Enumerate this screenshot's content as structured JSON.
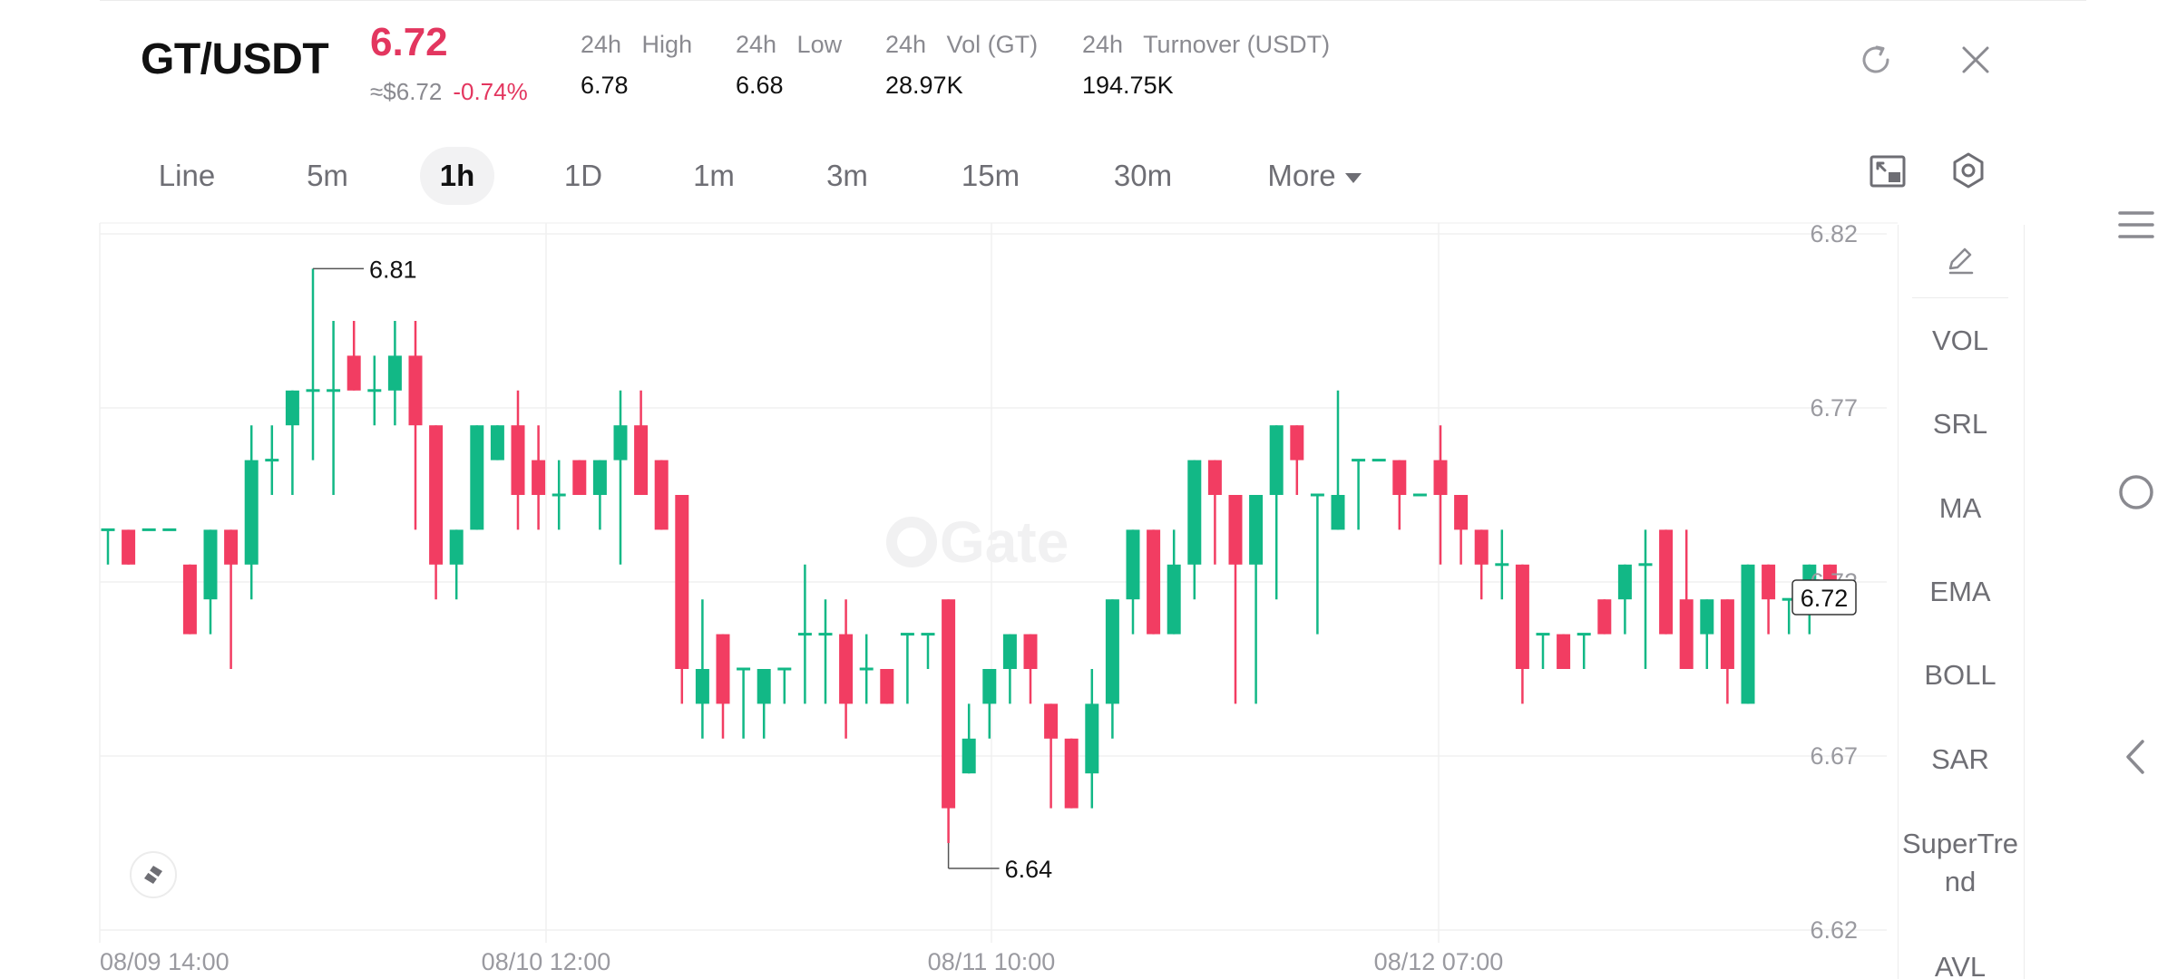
{
  "header": {
    "pair": "GT/USDT",
    "price": "6.72",
    "approx": "≈$6.72",
    "change": "-0.74%",
    "stats": [
      {
        "label": "24h   High",
        "value": "6.78"
      },
      {
        "label": "24h   Low",
        "value": "6.68"
      },
      {
        "label": "24h   Vol (GT)",
        "value": "28.97K"
      },
      {
        "label": "24h   Turnover (USDT)",
        "value": "194.75K"
      }
    ],
    "icons": [
      "refresh-icon",
      "close-icon"
    ]
  },
  "tabs": [
    {
      "label": "Line",
      "active": false
    },
    {
      "label": "5m",
      "active": false
    },
    {
      "label": "1h",
      "active": true
    },
    {
      "label": "1D",
      "active": false
    },
    {
      "label": "1m",
      "active": false
    },
    {
      "label": "3m",
      "active": false
    },
    {
      "label": "15m",
      "active": false
    },
    {
      "label": "30m",
      "active": false
    },
    {
      "label": "More",
      "active": false
    }
  ],
  "toolbar_icons": [
    "fullscreen-icon",
    "settings-icon"
  ],
  "indicators": [
    "VOL",
    "SRL",
    "MA",
    "EMA",
    "BOLL",
    "SAR",
    "SuperTre\nnd",
    "AVL"
  ],
  "watermark": "Gate",
  "chart_data": {
    "type": "candlestick",
    "y_ticks": [
      "6.82",
      "6.77",
      "6.72",
      "6.67",
      "6.62"
    ],
    "ylim": [
      6.62,
      6.82
    ],
    "x_ticks": [
      "08/09 14:00",
      "08/10 12:00",
      "08/11 10:00",
      "08/12 07:00"
    ],
    "current_price": "6.72",
    "high_label": "6.81",
    "low_label": "6.64",
    "colors": {
      "up": "#12b886",
      "down": "#f23d62"
    },
    "candles": [
      [
        6.735,
        6.735,
        6.735,
        6.725
      ],
      [
        6.735,
        6.725,
        6.735,
        6.725
      ],
      [
        6.735,
        6.735,
        6.735,
        6.735
      ],
      [
        6.735,
        6.735,
        6.735,
        6.735
      ],
      [
        6.725,
        6.705,
        6.725,
        6.705
      ],
      [
        6.715,
        6.735,
        6.735,
        6.705
      ],
      [
        6.735,
        6.725,
        6.735,
        6.695
      ],
      [
        6.725,
        6.755,
        6.765,
        6.715
      ],
      [
        6.755,
        6.755,
        6.765,
        6.745
      ],
      [
        6.765,
        6.775,
        6.775,
        6.745
      ],
      [
        6.775,
        6.775,
        6.81,
        6.755
      ],
      [
        6.775,
        6.775,
        6.795,
        6.745
      ],
      [
        6.785,
        6.775,
        6.795,
        6.775
      ],
      [
        6.775,
        6.775,
        6.785,
        6.765
      ],
      [
        6.775,
        6.785,
        6.795,
        6.765
      ],
      [
        6.785,
        6.765,
        6.795,
        6.735
      ],
      [
        6.765,
        6.725,
        6.765,
        6.715
      ],
      [
        6.725,
        6.735,
        6.735,
        6.715
      ],
      [
        6.735,
        6.765,
        6.765,
        6.735
      ],
      [
        6.755,
        6.765,
        6.765,
        6.755
      ],
      [
        6.765,
        6.745,
        6.775,
        6.735
      ],
      [
        6.755,
        6.745,
        6.765,
        6.735
      ],
      [
        6.745,
        6.745,
        6.755,
        6.735
      ],
      [
        6.755,
        6.745,
        6.755,
        6.745
      ],
      [
        6.745,
        6.755,
        6.755,
        6.735
      ],
      [
        6.755,
        6.765,
        6.775,
        6.725
      ],
      [
        6.765,
        6.745,
        6.775,
        6.745
      ],
      [
        6.755,
        6.735,
        6.755,
        6.735
      ],
      [
        6.745,
        6.695,
        6.745,
        6.685
      ],
      [
        6.685,
        6.695,
        6.715,
        6.675
      ],
      [
        6.705,
        6.685,
        6.705,
        6.675
      ],
      [
        6.695,
        6.695,
        6.695,
        6.675
      ],
      [
        6.685,
        6.695,
        6.695,
        6.675
      ],
      [
        6.695,
        6.695,
        6.695,
        6.685
      ],
      [
        6.705,
        6.705,
        6.725,
        6.685
      ],
      [
        6.705,
        6.705,
        6.715,
        6.685
      ],
      [
        6.705,
        6.685,
        6.715,
        6.675
      ],
      [
        6.695,
        6.695,
        6.705,
        6.685
      ],
      [
        6.695,
        6.685,
        6.695,
        6.685
      ],
      [
        6.705,
        6.705,
        6.705,
        6.685
      ],
      [
        6.705,
        6.705,
        6.705,
        6.695
      ],
      [
        6.715,
        6.655,
        6.715,
        6.645
      ],
      [
        6.665,
        6.675,
        6.685,
        6.665
      ],
      [
        6.685,
        6.695,
        6.695,
        6.675
      ],
      [
        6.695,
        6.705,
        6.705,
        6.685
      ],
      [
        6.705,
        6.695,
        6.705,
        6.685
      ],
      [
        6.685,
        6.675,
        6.685,
        6.655
      ],
      [
        6.675,
        6.655,
        6.675,
        6.655
      ],
      [
        6.665,
        6.685,
        6.695,
        6.655
      ],
      [
        6.685,
        6.715,
        6.715,
        6.675
      ],
      [
        6.715,
        6.735,
        6.735,
        6.705
      ],
      [
        6.735,
        6.705,
        6.735,
        6.705
      ],
      [
        6.705,
        6.725,
        6.735,
        6.705
      ],
      [
        6.725,
        6.755,
        6.755,
        6.715
      ],
      [
        6.755,
        6.745,
        6.755,
        6.725
      ],
      [
        6.745,
        6.725,
        6.745,
        6.685
      ],
      [
        6.725,
        6.745,
        6.745,
        6.685
      ],
      [
        6.745,
        6.765,
        6.765,
        6.715
      ],
      [
        6.765,
        6.755,
        6.765,
        6.745
      ],
      [
        6.745,
        6.745,
        6.745,
        6.705
      ],
      [
        6.735,
        6.745,
        6.775,
        6.735
      ],
      [
        6.755,
        6.755,
        6.755,
        6.735
      ],
      [
        6.755,
        6.755,
        6.755,
        6.755
      ],
      [
        6.755,
        6.745,
        6.755,
        6.735
      ],
      [
        6.745,
        6.745,
        6.745,
        6.745
      ],
      [
        6.755,
        6.745,
        6.765,
        6.725
      ],
      [
        6.745,
        6.735,
        6.745,
        6.725
      ],
      [
        6.735,
        6.725,
        6.735,
        6.715
      ],
      [
        6.725,
        6.725,
        6.735,
        6.715
      ],
      [
        6.725,
        6.695,
        6.725,
        6.685
      ],
      [
        6.705,
        6.705,
        6.705,
        6.695
      ],
      [
        6.705,
        6.695,
        6.705,
        6.695
      ],
      [
        6.705,
        6.705,
        6.705,
        6.695
      ],
      [
        6.715,
        6.705,
        6.715,
        6.705
      ],
      [
        6.715,
        6.725,
        6.725,
        6.705
      ],
      [
        6.725,
        6.725,
        6.735,
        6.695
      ],
      [
        6.735,
        6.705,
        6.735,
        6.705
      ],
      [
        6.715,
        6.695,
        6.735,
        6.695
      ],
      [
        6.705,
        6.715,
        6.715,
        6.695
      ],
      [
        6.715,
        6.695,
        6.715,
        6.685
      ],
      [
        6.685,
        6.725,
        6.725,
        6.685
      ],
      [
        6.725,
        6.715,
        6.725,
        6.705
      ],
      [
        6.715,
        6.715,
        6.715,
        6.705
      ],
      [
        6.715,
        6.725,
        6.725,
        6.705
      ],
      [
        6.725,
        6.715,
        6.725,
        6.715
      ]
    ]
  }
}
